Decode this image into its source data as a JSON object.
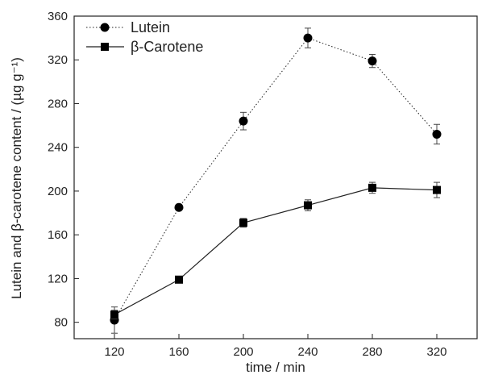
{
  "chart_data": {
    "type": "line",
    "xlabel": "time / min",
    "ylabel": "Lutein and β-carotene content / (µg g⁻¹)",
    "x": [
      120,
      160,
      200,
      240,
      280,
      320
    ],
    "xticks": [
      "120",
      "160",
      "200",
      "240",
      "280",
      "320"
    ],
    "yticks": [
      "80",
      "120",
      "160",
      "200",
      "240",
      "280",
      "320",
      "360"
    ],
    "xlim": [
      95,
      345
    ],
    "ylim": [
      65,
      360
    ],
    "grid": false,
    "legend_position": "top-left",
    "series": [
      {
        "name": "Lutein",
        "marker": "circle",
        "line_style": "dotted",
        "values": [
          82,
          185,
          264,
          340,
          319,
          252
        ],
        "errors": [
          12,
          0,
          8,
          9,
          6,
          9
        ]
      },
      {
        "name": "β-Carotene",
        "marker": "square",
        "line_style": "solid",
        "values": [
          87,
          119,
          171,
          187,
          203,
          201
        ],
        "errors": [
          4,
          0,
          4,
          5,
          5,
          7
        ]
      }
    ]
  }
}
